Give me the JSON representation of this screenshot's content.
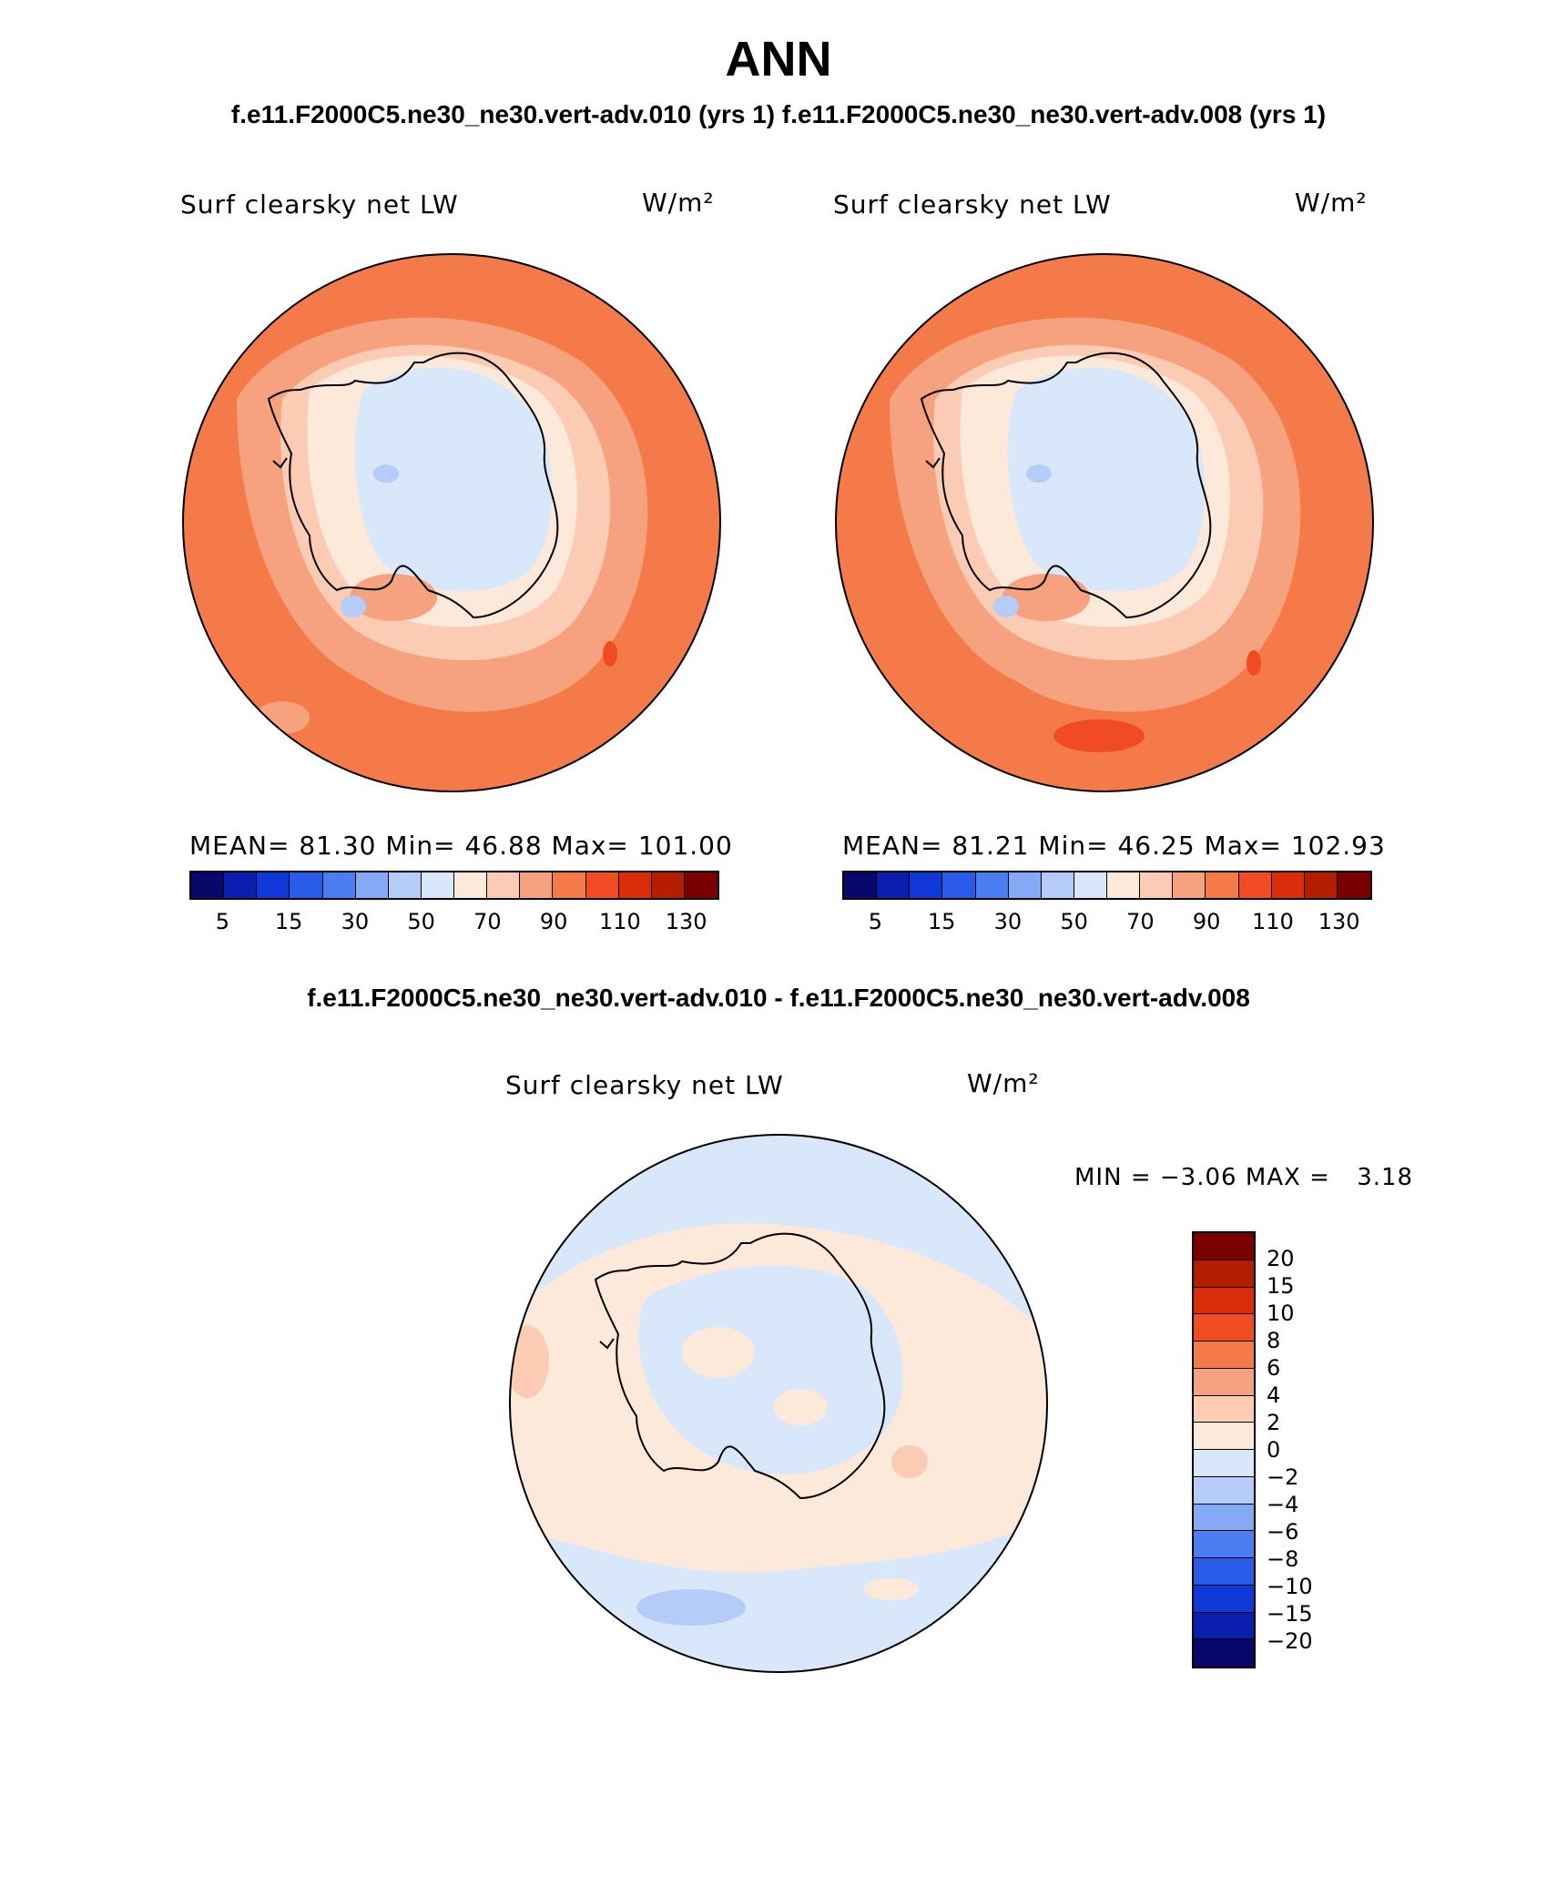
{
  "title": "ANN",
  "subtitle_top": "f.e11.F2000C5.ne30_ne30.vert-adv.010 (yrs 1) f.e11.F2000C5.ne30_ne30.vert-adv.008 (yrs 1)",
  "subtitle_diff": "f.e11.F2000C5.ne30_ne30.vert-adv.010 - f.e11.F2000C5.ne30_ne30.vert-adv.008",
  "panels": [
    {
      "variable": "Surf clearsky net LW",
      "units": "W/m²",
      "stats": {
        "mean_label": "MEAN=",
        "mean": "81.30",
        "min_label": "Min=",
        "min": "46.88",
        "max_label": "Max=",
        "max": "101.00"
      }
    },
    {
      "variable": "Surf clearsky net LW",
      "units": "W/m²",
      "stats": {
        "mean_label": "MEAN=",
        "mean": "81.21",
        "min_label": "Min=",
        "min": "46.25",
        "max_label": "Max=",
        "max": "102.93"
      }
    }
  ],
  "diff_panel": {
    "variable": "Surf clearsky net LW",
    "units": "W/m²",
    "min_label": "MIN =",
    "min": "−3.06",
    "max_label": "MAX =",
    "max": "3.18"
  },
  "colorbar_main": {
    "colors": [
      "#08086b",
      "#0a1fb0",
      "#1038d8",
      "#2a5ae8",
      "#4a7df0",
      "#86a9f6",
      "#b6ccf8",
      "#d9e7fb",
      "#fde9d9",
      "#fbcbb3",
      "#f6a27f",
      "#f57a4a",
      "#f04b22",
      "#dc2d0a",
      "#b41e00",
      "#7a0000"
    ],
    "labels": [
      "5",
      "15",
      "30",
      "50",
      "70",
      "90",
      "110",
      "130"
    ]
  },
  "colorbar_diff": {
    "colors": [
      "#7a0000",
      "#b41e00",
      "#dc2d0a",
      "#f04b22",
      "#f57a4a",
      "#f6a27f",
      "#fbcbb3",
      "#fde9d9",
      "#d9e7fb",
      "#b6ccf8",
      "#86a9f6",
      "#4a7df0",
      "#2a5ae8",
      "#1038d8",
      "#0a1fb0",
      "#08086b"
    ],
    "labels": [
      "20",
      "15",
      "10",
      "8",
      "6",
      "4",
      "2",
      "0",
      "−2",
      "−4",
      "−6",
      "−8",
      "−10",
      "−15",
      "−20"
    ]
  }
}
